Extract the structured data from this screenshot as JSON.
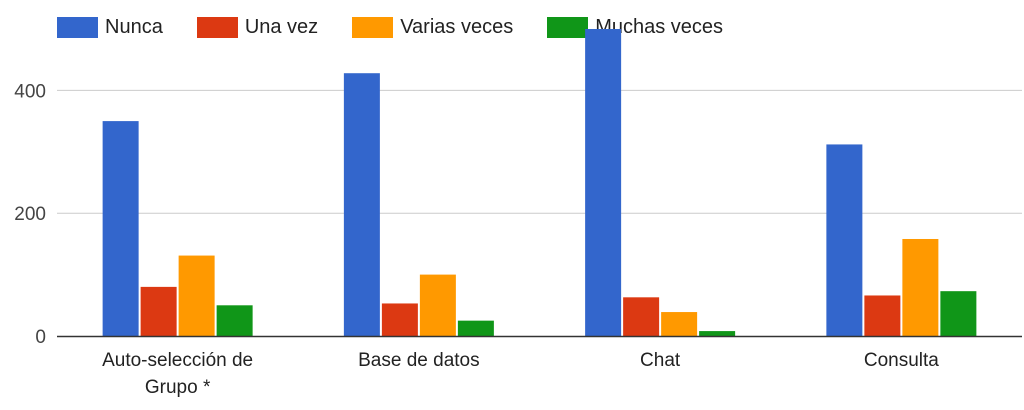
{
  "chart_data": {
    "type": "bar",
    "categories": [
      [
        "Auto-selección de",
        "Grupo *"
      ],
      [
        "Base de datos"
      ],
      [
        "Chat"
      ],
      [
        "Consulta"
      ]
    ],
    "series": [
      {
        "name": "Nunca",
        "color": "#3366cc",
        "values": [
          350,
          428,
          500,
          312
        ]
      },
      {
        "name": "Una vez",
        "color": "#dc3912",
        "values": [
          80,
          53,
          63,
          66
        ]
      },
      {
        "name": "Varias veces",
        "color": "#ff9900",
        "values": [
          131,
          100,
          39,
          158
        ]
      },
      {
        "name": "Muchas veces",
        "color": "#109618",
        "values": [
          50,
          25,
          8,
          73
        ]
      }
    ],
    "y_ticks": [
      "0",
      "200",
      "400"
    ],
    "y_tick_values": [
      0,
      200,
      400
    ],
    "ylim": [
      0,
      500
    ],
    "grid": true,
    "legend_position": "top-left"
  }
}
